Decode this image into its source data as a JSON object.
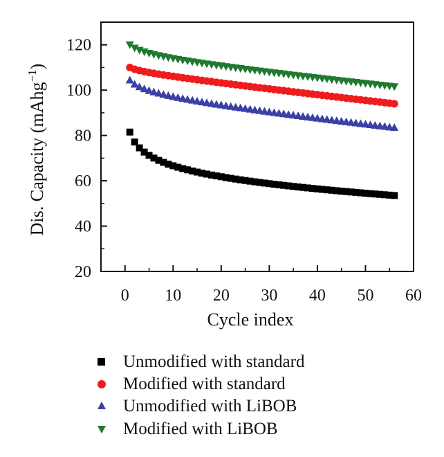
{
  "chart_data": {
    "type": "scatter",
    "xlabel": "Cycle index",
    "ylabel_main": "Dis. Capacity (mAhg",
    "ylabel_sup": "−1",
    "ylabel_tail": ")",
    "xlim": [
      -5,
      60
    ],
    "ylim": [
      20,
      130
    ],
    "x_ticks": [
      0,
      10,
      20,
      30,
      40,
      50,
      60
    ],
    "y_ticks": [
      20,
      40,
      60,
      80,
      100,
      120
    ],
    "grid": false,
    "legend_position": "bottom",
    "series": [
      {
        "name": "Unmodified with standard",
        "marker": "square",
        "color": "#000000",
        "y_start": 81.5,
        "y_end": 53.5,
        "shape": "log"
      },
      {
        "name": "Modified with standard",
        "marker": "circle",
        "color": "#ee1c1c",
        "y_start": 110,
        "y_end": 94,
        "shape": "linear"
      },
      {
        "name": "Unmodified with LiBOB",
        "marker": "triangle-up",
        "color": "#3b3fa6",
        "y_start": 104.5,
        "y_end": 83.5,
        "shape": "mixed"
      },
      {
        "name": "Modified with LiBOB",
        "marker": "triangle-down",
        "color": "#1f7a2f",
        "y_start": 120,
        "y_end": 101.5,
        "shape": "mixed-green"
      }
    ],
    "x_values": {
      "start": 1,
      "end": 56,
      "step": 1
    }
  }
}
